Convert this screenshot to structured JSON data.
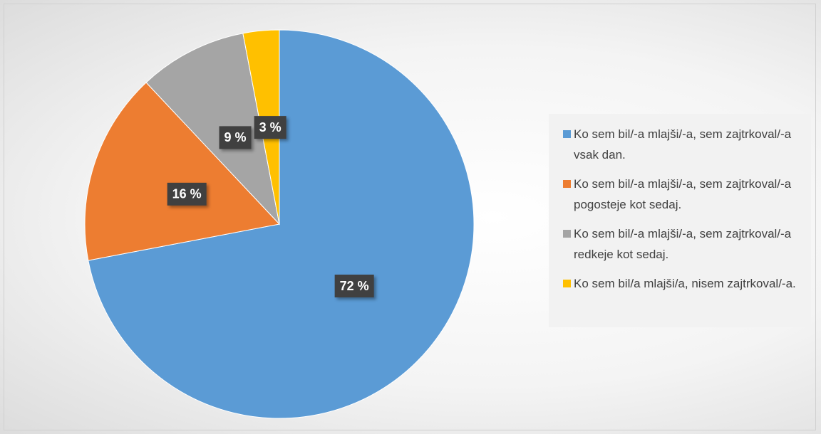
{
  "chart_data": {
    "type": "pie",
    "categories": [
      "Ko sem bil/-a mlajši/-a, sem zajtrkoval/-a vsak dan.",
      "Ko sem bil/-a mlajši/-a, sem zajtrkoval/-a pogosteje kot sedaj.",
      "Ko sem bil/-a mlajši/-a, sem zajtrkoval/-a redkeje kot sedaj.",
      "Ko sem bil/a mlajši/a, nisem zajtrkoval/-a."
    ],
    "values": [
      72,
      16,
      9,
      3
    ],
    "value_labels": [
      "72 %",
      "16 %",
      "9 %",
      "3 %"
    ],
    "colors": [
      "#5b9bd5",
      "#ed7d31",
      "#a5a5a5",
      "#ffc000"
    ],
    "legend": "right"
  }
}
